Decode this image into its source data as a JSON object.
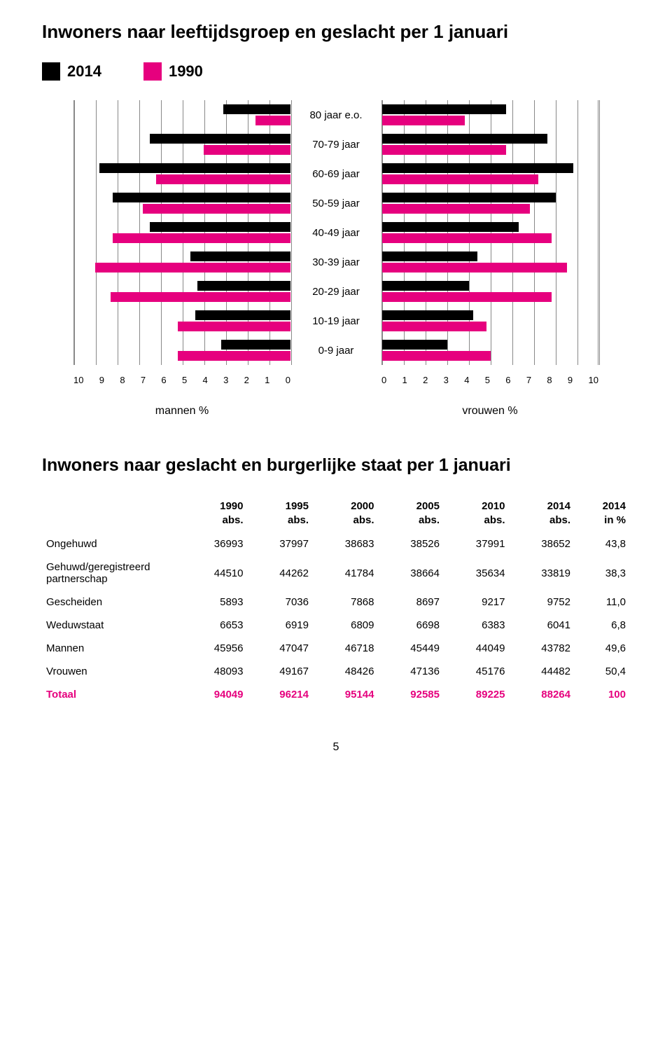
{
  "colors": {
    "c2014": "#000000",
    "c1990": "#e6007e",
    "totalText": "#e6007e",
    "grid": "#888888"
  },
  "title1": "Inwoners naar leeftijdsgroep en geslacht per 1 januari",
  "legend": {
    "y2014": "2014",
    "y1990": "1990"
  },
  "pyramid": {
    "maxPct": 10,
    "ticks_left": [
      "10",
      "9",
      "8",
      "7",
      "6",
      "5",
      "4",
      "3",
      "2",
      "1",
      "0"
    ],
    "ticks_right": [
      "0",
      "1",
      "2",
      "3",
      "4",
      "5",
      "6",
      "7",
      "8",
      "9",
      "10"
    ],
    "label_men": "mannen %",
    "label_women": "vrouwen %",
    "rows": [
      {
        "label": "80 jaar e.o.",
        "m2014": 3.1,
        "m1990": 1.6,
        "f2014": 5.7,
        "f1990": 3.8
      },
      {
        "label": "70-79 jaar",
        "m2014": 6.5,
        "m1990": 4.0,
        "f2014": 7.6,
        "f1990": 5.7
      },
      {
        "label": "60-69 jaar",
        "m2014": 8.8,
        "m1990": 6.2,
        "f2014": 8.8,
        "f1990": 7.2
      },
      {
        "label": "50-59 jaar",
        "m2014": 8.2,
        "m1990": 6.8,
        "f2014": 8.0,
        "f1990": 6.8
      },
      {
        "label": "40-49 jaar",
        "m2014": 6.5,
        "m1990": 8.2,
        "f2014": 6.3,
        "f1990": 7.8
      },
      {
        "label": "30-39 jaar",
        "m2014": 4.6,
        "m1990": 9.0,
        "f2014": 4.4,
        "f1990": 8.5
      },
      {
        "label": "20-29 jaar",
        "m2014": 4.3,
        "m1990": 8.3,
        "f2014": 4.0,
        "f1990": 7.8
      },
      {
        "label": "10-19 jaar",
        "m2014": 4.4,
        "m1990": 5.2,
        "f2014": 4.2,
        "f1990": 4.8
      },
      {
        "label": "0-9 jaar",
        "m2014": 3.2,
        "m1990": 5.2,
        "f2014": 3.0,
        "f1990": 5.0
      }
    ]
  },
  "title2": "Inwoners naar geslacht en burgerlijke staat per 1 januari",
  "table": {
    "headers": {
      "c1": {
        "y": "1990",
        "sub": "abs."
      },
      "c2": {
        "y": "1995",
        "sub": "abs."
      },
      "c3": {
        "y": "2000",
        "sub": "abs."
      },
      "c4": {
        "y": "2005",
        "sub": "abs."
      },
      "c5": {
        "y": "2010",
        "sub": "abs."
      },
      "c6": {
        "y": "2014",
        "sub": "abs."
      },
      "c7": {
        "y": "2014",
        "sub": "in %"
      }
    },
    "rows": [
      {
        "label": "Ongehuwd",
        "v": [
          "36993",
          "37997",
          "38683",
          "38526",
          "37991",
          "38652",
          "43,8"
        ]
      },
      {
        "label": "Gehuwd/geregistreerd partnerschap",
        "v": [
          "44510",
          "44262",
          "41784",
          "38664",
          "35634",
          "33819",
          "38,3"
        ]
      },
      {
        "label": "Gescheiden",
        "v": [
          "5893",
          "7036",
          "7868",
          "8697",
          "9217",
          "9752",
          "11,0"
        ]
      },
      {
        "label": "Weduwstaat",
        "v": [
          "6653",
          "6919",
          "6809",
          "6698",
          "6383",
          "6041",
          "6,8"
        ]
      },
      {
        "label": "Mannen",
        "v": [
          "45956",
          "47047",
          "46718",
          "45449",
          "44049",
          "43782",
          "49,6"
        ]
      },
      {
        "label": "Vrouwen",
        "v": [
          "48093",
          "49167",
          "48426",
          "47136",
          "45176",
          "44482",
          "50,4"
        ]
      }
    ],
    "total": {
      "label": "Totaal",
      "v": [
        "94049",
        "96214",
        "95144",
        "92585",
        "89225",
        "88264",
        "100"
      ]
    }
  },
  "pageNumber": "5"
}
